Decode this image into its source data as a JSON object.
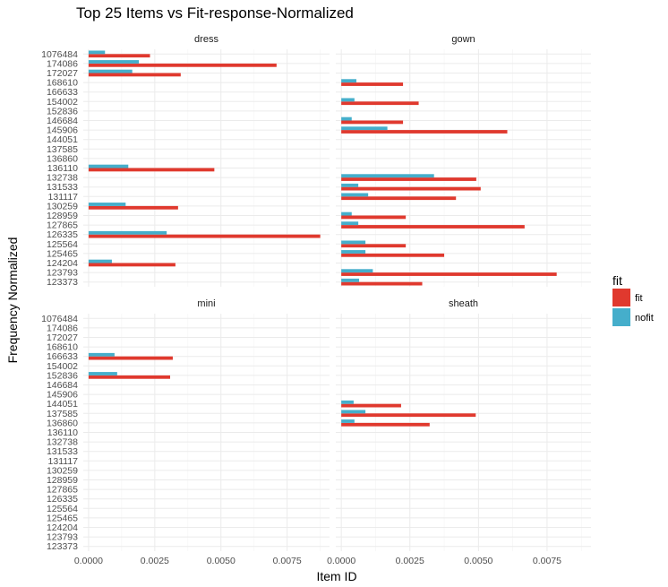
{
  "chart_data": {
    "type": "bar",
    "orientation": "horizontal",
    "title": "Top 25 Items vs Fit-response-Normalized",
    "xlabel": "Item ID",
    "ylabel": "Frequency Normalized",
    "xlim": [
      -0.0002,
      0.0091
    ],
    "x_ticks": [
      "0.0000",
      "0.0025",
      "0.0050",
      "0.0075"
    ],
    "x_tick_values": [
      0,
      0.0025,
      0.005,
      0.0075
    ],
    "grid": true,
    "legend": {
      "title": "fit",
      "placement": "right",
      "entries": [
        {
          "label": "fit",
          "color": "#e0392e"
        },
        {
          "label": "nofit",
          "color": "#45aecb"
        }
      ]
    },
    "categories": [
      "1076484",
      "174086",
      "172027",
      "168610",
      "166633",
      "154002",
      "152836",
      "146684",
      "145906",
      "144051",
      "137585",
      "136860",
      "136110",
      "132738",
      "131533",
      "131117",
      "130259",
      "128959",
      "127865",
      "126335",
      "125564",
      "125465",
      "124204",
      "123793",
      "123373"
    ],
    "panels": [
      {
        "name": "dress",
        "series": [
          {
            "name": "fit",
            "values": [
              0.00232,
              0.0071,
              0.00348,
              0,
              0,
              0,
              0,
              0,
              0,
              0,
              0,
              0,
              0.00475,
              0,
              0,
              0,
              0.00338,
              0,
              0,
              0.00875,
              0,
              0,
              0.00328,
              0,
              0
            ]
          },
          {
            "name": "nofit",
            "values": [
              0.00062,
              0.0019,
              0.00165,
              0,
              0,
              0,
              0,
              0,
              0,
              0,
              0,
              0,
              0.0015,
              0,
              0,
              0,
              0.0014,
              0,
              0,
              0.00295,
              0,
              0,
              0.00088,
              0,
              0
            ]
          }
        ]
      },
      {
        "name": "gown",
        "series": [
          {
            "name": "fit",
            "values": [
              0,
              0,
              0,
              0.00225,
              0,
              0.00282,
              0,
              0.00225,
              0.00605,
              0,
              0,
              0,
              0,
              0.00492,
              0.00508,
              0.00418,
              0,
              0.00235,
              0.00668,
              0,
              0.00235,
              0.00375,
              0,
              0.00785,
              0.00295
            ]
          },
          {
            "name": "nofit",
            "values": [
              0,
              0,
              0,
              0.00055,
              0,
              0.00048,
              0,
              0.00038,
              0.00168,
              0,
              0,
              0,
              0,
              0.00338,
              0.00062,
              0.00098,
              0,
              0.00038,
              0.00062,
              0,
              0.00088,
              0.00088,
              0,
              0.00115,
              0.00065
            ]
          }
        ]
      },
      {
        "name": "mini",
        "series": [
          {
            "name": "fit",
            "values": [
              0,
              0,
              0,
              0,
              0.00318,
              0,
              0.00308,
              0,
              0,
              0,
              0,
              0,
              0,
              0,
              0,
              0,
              0,
              0,
              0,
              0,
              0,
              0,
              0,
              0,
              0
            ]
          },
          {
            "name": "nofit",
            "values": [
              0,
              0,
              0,
              0,
              0.00098,
              0,
              0.00108,
              0,
              0,
              0,
              0,
              0,
              0,
              0,
              0,
              0,
              0,
              0,
              0,
              0,
              0,
              0,
              0,
              0,
              0
            ]
          }
        ]
      },
      {
        "name": "sheath",
        "series": [
          {
            "name": "fit",
            "values": [
              0,
              0,
              0,
              0,
              0,
              0,
              0,
              0,
              0,
              0.00218,
              0.0049,
              0.00322,
              0,
              0,
              0,
              0,
              0,
              0,
              0,
              0,
              0,
              0,
              0,
              0,
              0
            ]
          },
          {
            "name": "nofit",
            "values": [
              0,
              0,
              0,
              0,
              0,
              0,
              0,
              0,
              0,
              0.00045,
              0.00088,
              0.00048,
              0,
              0,
              0,
              0,
              0,
              0,
              0,
              0,
              0,
              0,
              0,
              0,
              0
            ]
          }
        ]
      }
    ]
  }
}
